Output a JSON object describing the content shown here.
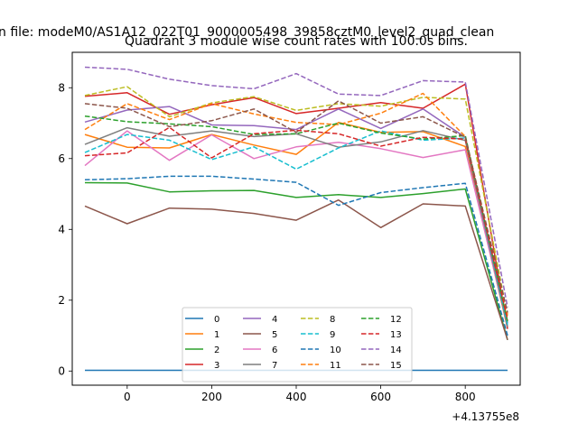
{
  "chart_data": {
    "type": "line",
    "suptitle": "n file: modeM0/AS1A12_022T01_9000005498_39858cztM0_level2_quad_clean",
    "title": "Quadrant 3 module wise count rates with 100.0s bins.",
    "xlabel": "",
    "ylabel": "",
    "x_offset_label": "+4.13755e8",
    "x": [
      -100,
      0,
      100,
      200,
      300,
      400,
      500,
      600,
      700,
      800,
      900
    ],
    "xlim": [
      -130,
      930
    ],
    "ylim": [
      -0.4,
      9.0
    ],
    "xticks": [
      0,
      200,
      400,
      600,
      800
    ],
    "yticks": [
      0,
      2,
      4,
      6,
      8
    ],
    "grid": false,
    "legend": {
      "location": "lower center",
      "ncol": 4
    },
    "series": [
      {
        "name": "0",
        "color": "#1f77b4",
        "dash": "solid",
        "values": [
          0.02,
          0.02,
          0.02,
          0.02,
          0.02,
          0.02,
          0.02,
          0.02,
          0.02,
          0.02,
          0.02
        ]
      },
      {
        "name": "1",
        "color": "#ff7f0e",
        "dash": "solid",
        "values": [
          6.68,
          6.32,
          6.3,
          6.68,
          6.38,
          6.12,
          7.02,
          6.74,
          6.76,
          6.34,
          1.21
        ]
      },
      {
        "name": "2",
        "color": "#2ca02c",
        "dash": "solid",
        "values": [
          5.32,
          5.31,
          5.06,
          5.09,
          5.1,
          4.9,
          4.98,
          4.9,
          5.01,
          5.14,
          0.88
        ]
      },
      {
        "name": "3",
        "color": "#d62728",
        "dash": "solid",
        "values": [
          7.76,
          7.86,
          7.25,
          7.52,
          7.72,
          7.27,
          7.42,
          7.58,
          7.42,
          8.1,
          1.19
        ]
      },
      {
        "name": "4",
        "color": "#9467bd",
        "dash": "solid",
        "values": [
          7.03,
          7.37,
          7.47,
          6.95,
          6.93,
          6.82,
          7.4,
          6.85,
          7.4,
          6.6,
          1.35
        ]
      },
      {
        "name": "5",
        "color": "#8c564b",
        "dash": "solid",
        "values": [
          4.66,
          4.16,
          4.6,
          4.57,
          4.45,
          4.26,
          4.83,
          4.05,
          4.72,
          4.66,
          0.88
        ]
      },
      {
        "name": "6",
        "color": "#e377c2",
        "dash": "solid",
        "values": [
          5.8,
          6.78,
          5.95,
          6.67,
          6.0,
          6.33,
          6.46,
          6.28,
          6.03,
          6.25,
          1.25
        ]
      },
      {
        "name": "7",
        "color": "#7f7f7f",
        "dash": "solid",
        "values": [
          6.4,
          6.87,
          6.63,
          6.78,
          6.62,
          6.7,
          6.32,
          6.47,
          6.79,
          6.51,
          1.25
        ]
      },
      {
        "name": "8",
        "color": "#bcbd22",
        "dash": "dashed",
        "values": [
          7.78,
          8.03,
          7.18,
          7.57,
          7.75,
          7.36,
          7.55,
          7.48,
          7.73,
          7.68,
          1.55
        ]
      },
      {
        "name": "9",
        "color": "#17becf",
        "dash": "dashed",
        "values": [
          6.17,
          6.68,
          6.52,
          5.97,
          6.33,
          5.7,
          6.3,
          6.78,
          6.52,
          6.58,
          1.3
        ]
      },
      {
        "name": "10",
        "color": "#1f77b4",
        "dash": "dashed",
        "values": [
          5.4,
          5.43,
          5.5,
          5.5,
          5.42,
          5.33,
          4.68,
          5.04,
          5.18,
          5.3,
          1.0
        ]
      },
      {
        "name": "11",
        "color": "#ff7f0e",
        "dash": "dashed",
        "values": [
          6.82,
          7.55,
          7.1,
          7.55,
          7.26,
          7.02,
          6.96,
          7.28,
          7.84,
          6.62,
          1.6
        ]
      },
      {
        "name": "12",
        "color": "#2ca02c",
        "dash": "dashed",
        "values": [
          7.2,
          7.04,
          6.98,
          6.9,
          6.68,
          6.7,
          7.0,
          6.72,
          6.55,
          6.65,
          1.4
        ]
      },
      {
        "name": "13",
        "color": "#d62728",
        "dash": "dashed",
        "values": [
          6.08,
          6.16,
          6.88,
          6.02,
          6.7,
          6.8,
          6.7,
          6.35,
          6.6,
          6.55,
          1.45
        ]
      },
      {
        "name": "14",
        "color": "#9467bd",
        "dash": "dashed",
        "values": [
          8.58,
          8.52,
          8.24,
          8.06,
          7.97,
          8.4,
          7.82,
          7.78,
          8.2,
          8.16,
          1.8
        ]
      },
      {
        "name": "15",
        "color": "#8c564b",
        "dash": "dashed",
        "values": [
          7.55,
          7.42,
          6.9,
          7.07,
          7.4,
          6.74,
          7.63,
          7.0,
          7.18,
          6.6,
          1.65
        ]
      }
    ]
  }
}
